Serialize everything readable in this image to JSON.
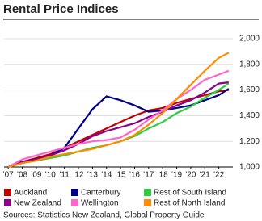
{
  "chart_data": {
    "type": "line",
    "title": "Rental Price Indices",
    "x": [
      2007,
      2008,
      2009,
      2010,
      2011,
      2012,
      2013,
      2014,
      2015,
      2016,
      2017,
      2018,
      2019,
      2020,
      2021,
      2022,
      2022.7
    ],
    "xlim": [
      2006.7,
      2023
    ],
    "xticks": [
      {
        "value": 2007,
        "label": "'07"
      },
      {
        "value": 2008,
        "label": "'08"
      },
      {
        "value": 2009,
        "label": "'09"
      },
      {
        "value": 2010,
        "label": "'10"
      },
      {
        "value": 2011,
        "label": "'11"
      },
      {
        "value": 2012,
        "label": "'12"
      },
      {
        "value": 2013,
        "label": "'13"
      },
      {
        "value": 2014,
        "label": "'14"
      },
      {
        "value": 2015,
        "label": "'15"
      },
      {
        "value": 2016,
        "label": "'16"
      },
      {
        "value": 2017,
        "label": "'17"
      },
      {
        "value": 2018,
        "label": "'18"
      },
      {
        "value": 2019,
        "label": "'19"
      },
      {
        "value": 2020,
        "label": "'20"
      },
      {
        "value": 2021,
        "label": "'21"
      },
      {
        "value": 2022,
        "label": "'22"
      }
    ],
    "ylim": [
      1000,
      2000
    ],
    "yticks": [
      {
        "value": 1000,
        "label": "1,000"
      },
      {
        "value": 1200,
        "label": "1,200"
      },
      {
        "value": 1400,
        "label": "1,400"
      },
      {
        "value": 1600,
        "label": "1,600"
      },
      {
        "value": 1800,
        "label": "1,800"
      },
      {
        "value": 2000,
        "label": "2,000"
      }
    ],
    "grid": true,
    "series": [
      {
        "name": "Auckland",
        "color": "#c00000",
        "values": [
          1000,
          1040,
          1070,
          1100,
          1150,
          1200,
          1250,
          1300,
          1350,
          1400,
          1440,
          1460,
          1500,
          1530,
          1560,
          1590,
          1600
        ]
      },
      {
        "name": "Canterbury",
        "color": "#00008b",
        "values": [
          1000,
          1040,
          1060,
          1090,
          1150,
          1300,
          1450,
          1550,
          1520,
          1480,
          1430,
          1440,
          1460,
          1480,
          1520,
          1560,
          1610
        ]
      },
      {
        "name": "Rest of South Island",
        "color": "#2ecc40",
        "values": [
          1000,
          1030,
          1050,
          1070,
          1090,
          1120,
          1150,
          1170,
          1200,
          1240,
          1300,
          1350,
          1420,
          1470,
          1540,
          1600,
          1650
        ]
      },
      {
        "name": "New Zealand",
        "color": "#8b008b",
        "values": [
          1000,
          1040,
          1060,
          1090,
          1130,
          1180,
          1240,
          1280,
          1310,
          1340,
          1390,
          1430,
          1480,
          1520,
          1580,
          1650,
          1660
        ]
      },
      {
        "name": "Wellington",
        "color": "#ff66cc",
        "values": [
          1000,
          1060,
          1090,
          1120,
          1150,
          1180,
          1200,
          1210,
          1230,
          1290,
          1370,
          1440,
          1530,
          1600,
          1680,
          1720,
          1750
        ]
      },
      {
        "name": "Rest of North Island",
        "color": "#ff8c00",
        "values": [
          1000,
          1030,
          1050,
          1080,
          1100,
          1120,
          1140,
          1170,
          1200,
          1250,
          1330,
          1420,
          1530,
          1640,
          1750,
          1850,
          1890
        ]
      }
    ],
    "source": "Sources:  Statistics New Zealand, Global Property Guide"
  }
}
